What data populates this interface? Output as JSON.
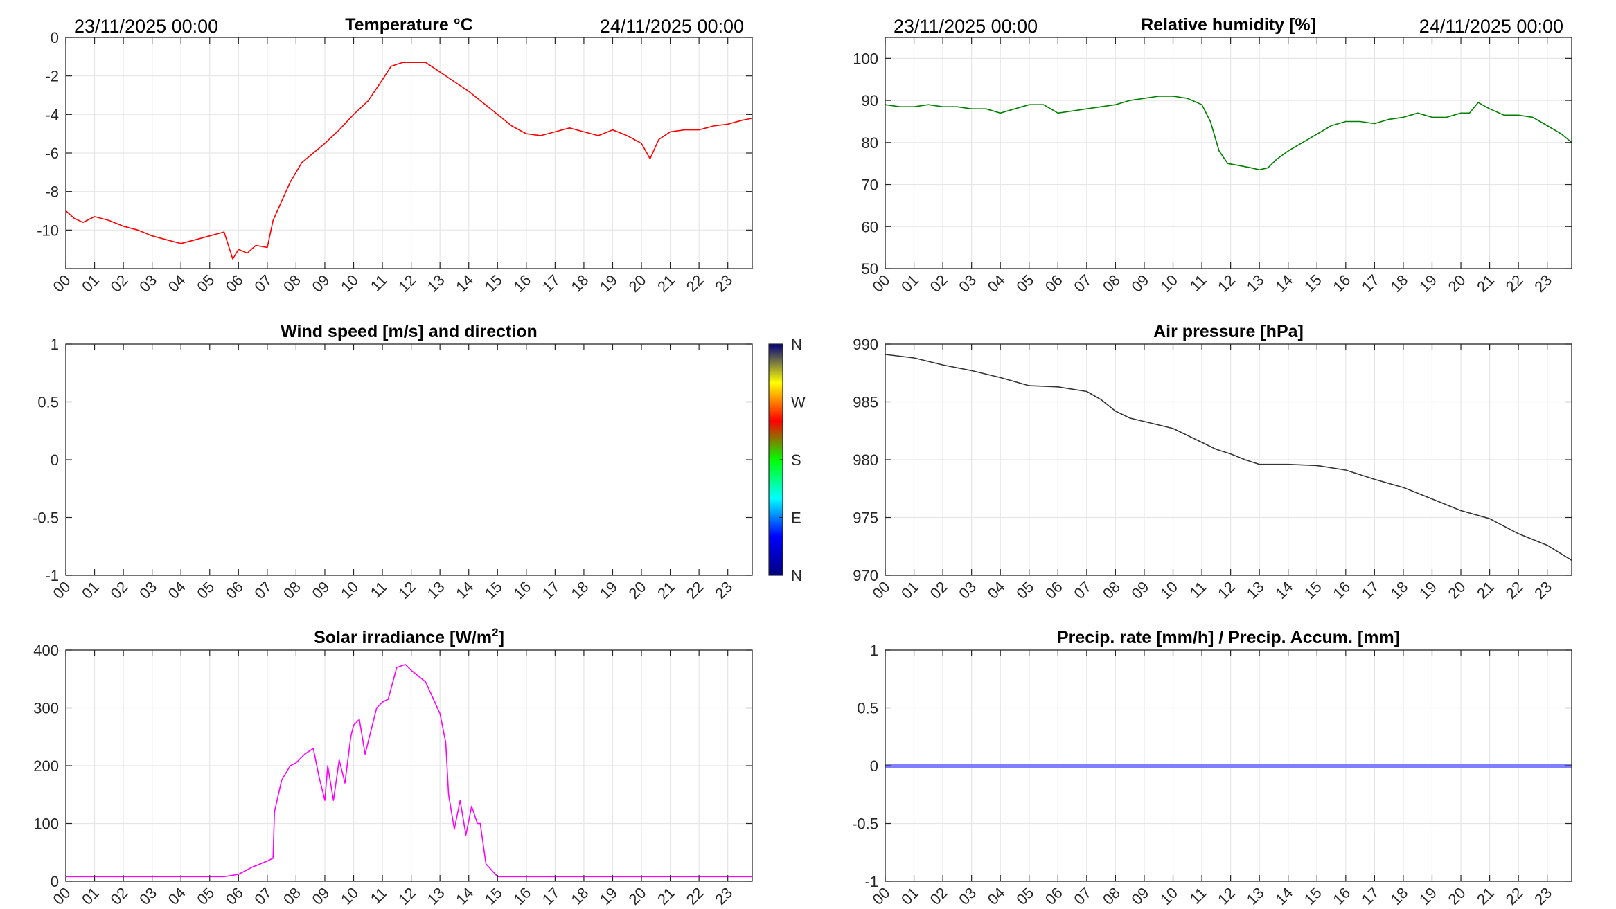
{
  "chart_data": [
    {
      "id": "temperature",
      "type": "line",
      "title": "Temperature °C",
      "date_left": "23/11/2025 00:00",
      "date_right": "24/11/2025 00:00",
      "xlabel": "",
      "ylabel": "",
      "xlim": [
        0,
        23.85
      ],
      "ylim": [
        -12,
        0
      ],
      "yticks": [
        0,
        -2,
        -4,
        -6,
        -8,
        -10
      ],
      "ytick_labels": [
        "0",
        "-2",
        "-4",
        "-6",
        "-8",
        "-10"
      ],
      "xtick_labels": [
        "00",
        "01",
        "02",
        "03",
        "04",
        "05",
        "06",
        "07",
        "08",
        "09",
        "10",
        "11",
        "12",
        "13",
        "14",
        "15",
        "16",
        "17",
        "18",
        "19",
        "20",
        "21",
        "22",
        "23"
      ],
      "grid": true,
      "color": "#ff0000",
      "x": [
        0,
        0.3,
        0.6,
        1,
        1.5,
        2,
        2.5,
        3,
        3.5,
        4,
        4.5,
        5,
        5.5,
        5.8,
        6,
        6.3,
        6.6,
        7,
        7.2,
        7.5,
        7.8,
        8.2,
        8.6,
        9,
        9.5,
        10,
        10.5,
        11,
        11.3,
        11.7,
        12,
        12.5,
        13,
        13.5,
        14,
        14.5,
        15,
        15.5,
        16,
        16.5,
        17,
        17.5,
        18,
        18.5,
        19,
        19.5,
        20,
        20.3,
        20.6,
        21,
        21.5,
        22,
        22.5,
        23,
        23.5,
        23.85
      ],
      "y": [
        -9,
        -9.4,
        -9.6,
        -9.3,
        -9.5,
        -9.8,
        -10,
        -10.3,
        -10.5,
        -10.7,
        -10.5,
        -10.3,
        -10.1,
        -11.5,
        -11,
        -11.2,
        -10.8,
        -10.9,
        -9.5,
        -8.5,
        -7.5,
        -6.5,
        -6,
        -5.5,
        -4.8,
        -4,
        -3.3,
        -2.2,
        -1.5,
        -1.3,
        -1.3,
        -1.3,
        -1.8,
        -2.3,
        -2.8,
        -3.4,
        -4,
        -4.6,
        -5,
        -5.1,
        -4.9,
        -4.7,
        -4.9,
        -5.1,
        -4.8,
        -5.1,
        -5.5,
        -6.3,
        -5.3,
        -4.9,
        -4.8,
        -4.8,
        -4.6,
        -4.5,
        -4.3,
        -4.2
      ]
    },
    {
      "id": "humidity",
      "type": "line",
      "title": "Relative humidity [%]",
      "date_left": "23/11/2025 00:00",
      "date_right": "24/11/2025 00:00",
      "xlabel": "",
      "ylabel": "",
      "xlim": [
        0,
        23.85
      ],
      "ylim": [
        50,
        105
      ],
      "yticks": [
        100,
        90,
        80,
        70,
        60,
        50
      ],
      "ytick_labels": [
        "100",
        "90",
        "80",
        "70",
        "60",
        "50"
      ],
      "xtick_labels": [
        "00",
        "01",
        "02",
        "03",
        "04",
        "05",
        "06",
        "07",
        "08",
        "09",
        "10",
        "11",
        "12",
        "13",
        "14",
        "15",
        "16",
        "17",
        "18",
        "19",
        "20",
        "21",
        "22",
        "23"
      ],
      "grid": true,
      "color": "#007f00",
      "x": [
        0,
        0.5,
        1,
        1.5,
        2,
        2.5,
        3,
        3.5,
        4,
        4.5,
        5,
        5.5,
        6,
        6.5,
        7,
        7.5,
        8,
        8.5,
        9,
        9.5,
        10,
        10.5,
        11,
        11.3,
        11.6,
        11.9,
        12.3,
        12.7,
        13,
        13.3,
        13.6,
        14,
        14.5,
        15,
        15.5,
        16,
        16.5,
        17,
        17.5,
        18,
        18.5,
        19,
        19.5,
        20,
        20.3,
        20.6,
        21,
        21.5,
        22,
        22.5,
        23,
        23.5,
        23.85
      ],
      "y": [
        89,
        88.5,
        88.5,
        89,
        88.5,
        88.5,
        88,
        88,
        87,
        88,
        89,
        89,
        87,
        87.5,
        88,
        88.5,
        89,
        90,
        90.5,
        91,
        91,
        90.5,
        89,
        85,
        78,
        75,
        74.5,
        74,
        73.5,
        74,
        76,
        78,
        80,
        82,
        84,
        85,
        85,
        84.5,
        85.5,
        86,
        87,
        86,
        86,
        87,
        87,
        89.5,
        88,
        86.5,
        86.5,
        86,
        84,
        82,
        80
      ]
    },
    {
      "id": "wind",
      "type": "line",
      "title": "Wind speed [m/s] and direction",
      "xlabel": "",
      "ylabel": "",
      "xlim": [
        0,
        23.85
      ],
      "ylim": [
        -1,
        1
      ],
      "yticks": [
        1,
        0.5,
        0,
        -0.5,
        -1
      ],
      "ytick_labels": [
        "1",
        "0.5",
        "0",
        "-0.5",
        "-1"
      ],
      "xtick_labels": [
        "00",
        "01",
        "02",
        "03",
        "04",
        "05",
        "06",
        "07",
        "08",
        "09",
        "10",
        "11",
        "12",
        "13",
        "14",
        "15",
        "16",
        "17",
        "18",
        "19",
        "20",
        "21",
        "22",
        "23"
      ],
      "grid": false,
      "x": [],
      "y": [],
      "colorbar": {
        "labels": [
          "N",
          "W",
          "S",
          "E",
          "N"
        ],
        "colors": [
          "#000080",
          "#0000ff",
          "#00ffff",
          "#00ff00",
          "#ff0000",
          "#ffff00",
          "#00007f"
        ]
      }
    },
    {
      "id": "pressure",
      "type": "line",
      "title": "Air pressure [hPa]",
      "xlabel": "",
      "ylabel": "",
      "xlim": [
        0,
        23.85
      ],
      "ylim": [
        970,
        990
      ],
      "yticks": [
        990,
        985,
        980,
        975,
        970
      ],
      "ytick_labels": [
        "990",
        "985",
        "980",
        "975",
        "970"
      ],
      "xtick_labels": [
        "00",
        "01",
        "02",
        "03",
        "04",
        "05",
        "06",
        "07",
        "08",
        "09",
        "10",
        "11",
        "12",
        "13",
        "14",
        "15",
        "16",
        "17",
        "18",
        "19",
        "20",
        "21",
        "22",
        "23"
      ],
      "grid": true,
      "color": "#333333",
      "x": [
        0,
        1,
        2,
        3,
        4,
        5,
        6,
        7,
        7.5,
        8,
        8.5,
        9,
        10,
        11,
        11.5,
        12,
        12.5,
        13,
        13.5,
        14,
        15,
        16,
        17,
        18,
        19,
        20,
        21,
        22,
        23,
        23.85
      ],
      "y": [
        989.1,
        988.8,
        988.2,
        987.7,
        987.1,
        986.4,
        986.3,
        985.9,
        985.2,
        984.2,
        983.6,
        983.3,
        982.7,
        981.5,
        980.9,
        980.5,
        980.0,
        979.6,
        979.6,
        979.6,
        979.5,
        979.1,
        978.3,
        977.6,
        976.6,
        975.6,
        974.9,
        973.6,
        972.6,
        971.3
      ]
    },
    {
      "id": "solar",
      "type": "line",
      "title": "Solar irradiance [W/m²]",
      "title_main": "Solar irradiance [W/m",
      "title_sup": "2",
      "title_end": "]",
      "xlabel": "",
      "ylabel": "",
      "xlim": [
        0,
        23.85
      ],
      "ylim": [
        0,
        400
      ],
      "yticks": [
        400,
        300,
        200,
        100,
        0
      ],
      "ytick_labels": [
        "400",
        "300",
        "200",
        "100",
        "0"
      ],
      "xtick_labels": [
        "00",
        "01",
        "02",
        "03",
        "04",
        "05",
        "06",
        "07",
        "08",
        "09",
        "10",
        "11",
        "12",
        "13",
        "14",
        "15",
        "16",
        "17",
        "18",
        "19",
        "20",
        "21",
        "22",
        "23"
      ],
      "grid": true,
      "color": "#ff00ff",
      "x": [
        0,
        3,
        5.5,
        6,
        6.5,
        7,
        7.2,
        7.25,
        7.5,
        7.8,
        8,
        8.3,
        8.6,
        8.8,
        9,
        9.1,
        9.3,
        9.5,
        9.7,
        9.9,
        10,
        10.2,
        10.4,
        10.6,
        10.8,
        11,
        11.2,
        11.5,
        11.8,
        12,
        12.5,
        13,
        13.2,
        13.3,
        13.5,
        13.7,
        13.9,
        14.1,
        14.3,
        14.4,
        14.6,
        15,
        15.5,
        17,
        20,
        23.85
      ],
      "y": [
        8,
        8,
        8,
        12,
        25,
        35,
        40,
        120,
        175,
        200,
        205,
        220,
        230,
        180,
        140,
        200,
        140,
        210,
        170,
        250,
        270,
        280,
        220,
        260,
        300,
        310,
        315,
        370,
        375,
        365,
        345,
        290,
        240,
        150,
        90,
        140,
        80,
        130,
        100,
        100,
        30,
        8,
        8,
        8,
        8,
        8
      ]
    },
    {
      "id": "precip",
      "type": "line",
      "title": "Precip. rate [mm/h] / Precip. Accum. [mm]",
      "xlabel": "",
      "ylabel": "",
      "xlim": [
        0,
        23.85
      ],
      "ylim": [
        -1,
        1
      ],
      "yticks": [
        1,
        0.5,
        0,
        -0.5,
        -1
      ],
      "ytick_labels": [
        "1",
        "0.5",
        "0",
        "-0.5",
        "-1"
      ],
      "xtick_labels": [
        "00",
        "01",
        "02",
        "03",
        "04",
        "05",
        "06",
        "07",
        "08",
        "09",
        "10",
        "11",
        "12",
        "13",
        "14",
        "15",
        "16",
        "17",
        "18",
        "19",
        "20",
        "21",
        "22",
        "23"
      ],
      "grid": true,
      "color": "#7f7fff",
      "x": [
        0,
        23.85
      ],
      "y": [
        0,
        0
      ]
    }
  ]
}
